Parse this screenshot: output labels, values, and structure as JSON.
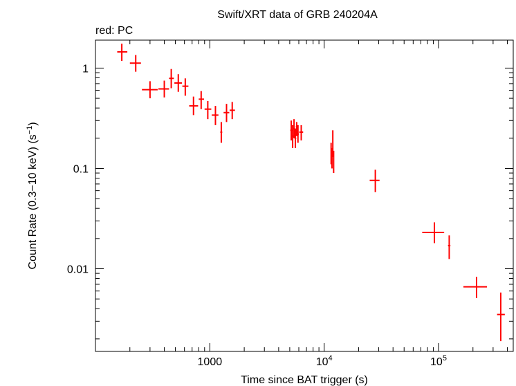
{
  "chart_data": {
    "type": "scatter",
    "title": "Swift/XRT data of GRB 240204A",
    "subtitle": "red: PC",
    "xlabel": "Time since BAT trigger (s)",
    "ylabel_main": "Count Rate (0.3−10 keV) (s",
    "ylabel_sup": "−1",
    "ylabel_close": ")",
    "xscale": "log",
    "yscale": "log",
    "xlim": [
      100,
      450000
    ],
    "ylim": [
      0.0015,
      1.9
    ],
    "x_tick_labels": [
      {
        "value": 1000,
        "base": "1000",
        "sup": ""
      },
      {
        "value": 10000,
        "base": "10",
        "sup": "4"
      },
      {
        "value": 100000,
        "base": "10",
        "sup": "5"
      }
    ],
    "y_tick_labels": [
      {
        "value": 1,
        "label": "1"
      },
      {
        "value": 0.1,
        "label": "0.1"
      },
      {
        "value": 0.01,
        "label": "0.01"
      }
    ],
    "grid": false,
    "legend": "none",
    "series": [
      {
        "color": "#ff0000",
        "points": [
          {
            "x": 170,
            "xlo": 155,
            "xhi": 190,
            "y": 1.45,
            "ylo": 1.18,
            "yhi": 1.75
          },
          {
            "x": 225,
            "xlo": 200,
            "xhi": 250,
            "y": 1.12,
            "ylo": 0.92,
            "yhi": 1.35
          },
          {
            "x": 300,
            "xlo": 255,
            "xhi": 350,
            "y": 0.61,
            "ylo": 0.5,
            "yhi": 0.74
          },
          {
            "x": 400,
            "xlo": 355,
            "xhi": 440,
            "y": 0.62,
            "ylo": 0.51,
            "yhi": 0.75
          },
          {
            "x": 460,
            "xlo": 440,
            "xhi": 485,
            "y": 0.79,
            "ylo": 0.63,
            "yhi": 0.98
          },
          {
            "x": 530,
            "xlo": 490,
            "xhi": 570,
            "y": 0.71,
            "ylo": 0.58,
            "yhi": 0.87
          },
          {
            "x": 610,
            "xlo": 575,
            "xhi": 650,
            "y": 0.66,
            "ylo": 0.53,
            "yhi": 0.79
          },
          {
            "x": 720,
            "xlo": 660,
            "xhi": 790,
            "y": 0.42,
            "ylo": 0.34,
            "yhi": 0.52
          },
          {
            "x": 840,
            "xlo": 800,
            "xhi": 890,
            "y": 0.49,
            "ylo": 0.39,
            "yhi": 0.59
          },
          {
            "x": 960,
            "xlo": 900,
            "xhi": 1030,
            "y": 0.39,
            "ylo": 0.31,
            "yhi": 0.47
          },
          {
            "x": 1120,
            "xlo": 1040,
            "xhi": 1190,
            "y": 0.34,
            "ylo": 0.27,
            "yhi": 0.42
          },
          {
            "x": 1260,
            "xlo": 1235,
            "xhi": 1285,
            "y": 0.23,
            "ylo": 0.18,
            "yhi": 0.29
          },
          {
            "x": 1400,
            "xlo": 1320,
            "xhi": 1480,
            "y": 0.36,
            "ylo": 0.29,
            "yhi": 0.44
          },
          {
            "x": 1570,
            "xlo": 1490,
            "xhi": 1660,
            "y": 0.38,
            "ylo": 0.31,
            "yhi": 0.46
          },
          {
            "x": 5150,
            "xlo": 5050,
            "xhi": 5250,
            "y": 0.24,
            "ylo": 0.19,
            "yhi": 0.3
          },
          {
            "x": 5300,
            "xlo": 5200,
            "xhi": 5400,
            "y": 0.21,
            "ylo": 0.16,
            "yhi": 0.27
          },
          {
            "x": 5450,
            "xlo": 5350,
            "xhi": 5550,
            "y": 0.25,
            "ylo": 0.2,
            "yhi": 0.31
          },
          {
            "x": 5600,
            "xlo": 5500,
            "xhi": 5700,
            "y": 0.2,
            "ylo": 0.16,
            "yhi": 0.25
          },
          {
            "x": 5750,
            "xlo": 5650,
            "xhi": 5850,
            "y": 0.26,
            "ylo": 0.21,
            "yhi": 0.29
          },
          {
            "x": 5900,
            "xlo": 5800,
            "xhi": 6000,
            "y": 0.22,
            "ylo": 0.18,
            "yhi": 0.27
          },
          {
            "x": 6300,
            "xlo": 6050,
            "xhi": 6550,
            "y": 0.23,
            "ylo": 0.19,
            "yhi": 0.27
          },
          {
            "x": 11500,
            "xlo": 11400,
            "xhi": 11600,
            "y": 0.15,
            "ylo": 0.11,
            "yhi": 0.18
          },
          {
            "x": 11700,
            "xlo": 11600,
            "xhi": 11800,
            "y": 0.13,
            "ylo": 0.1,
            "yhi": 0.16
          },
          {
            "x": 11900,
            "xlo": 11800,
            "xhi": 12000,
            "y": 0.17,
            "ylo": 0.13,
            "yhi": 0.24
          },
          {
            "x": 12100,
            "xlo": 12000,
            "xhi": 12200,
            "y": 0.12,
            "ylo": 0.09,
            "yhi": 0.15
          },
          {
            "x": 28000,
            "xlo": 25000,
            "xhi": 30500,
            "y": 0.076,
            "ylo": 0.058,
            "yhi": 0.097
          },
          {
            "x": 92000,
            "xlo": 72000,
            "xhi": 112000,
            "y": 0.023,
            "ylo": 0.018,
            "yhi": 0.029
          },
          {
            "x": 124000,
            "xlo": 121000,
            "xhi": 127000,
            "y": 0.017,
            "ylo": 0.0125,
            "yhi": 0.0215
          },
          {
            "x": 215000,
            "xlo": 165000,
            "xhi": 265000,
            "y": 0.0066,
            "ylo": 0.0051,
            "yhi": 0.0083
          },
          {
            "x": 350000,
            "xlo": 325000,
            "xhi": 380000,
            "y": 0.0035,
            "ylo": 0.0019,
            "yhi": 0.0058
          }
        ]
      }
    ]
  }
}
